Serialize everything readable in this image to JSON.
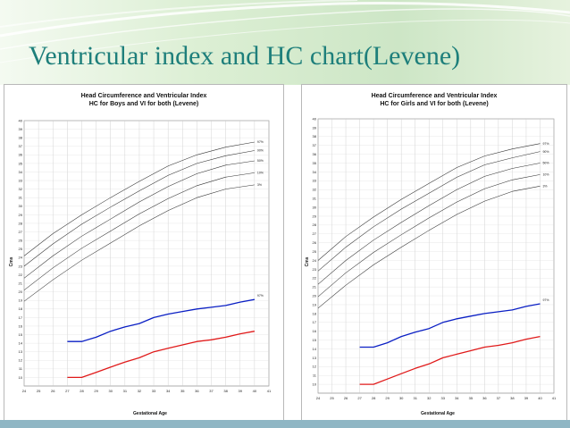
{
  "slide": {
    "title": "Ventricular index and HC chart(Levene)",
    "colors": {
      "title": "#1e7f7b",
      "hc_lines": "#333333",
      "vi_97": "#0a1fc4",
      "vi_50": "#e01a1a",
      "footer": "#8fb6c4"
    }
  },
  "chart_data": [
    {
      "type": "line",
      "title": "Head Circumference and Ventricular Index",
      "subtitle": "HC for Boys and VI for both (Levene)",
      "xlabel": "Gestational Age",
      "ylabel": "Cms",
      "xlim": [
        24,
        41
      ],
      "ylim": [
        9,
        40
      ],
      "xticks": [
        "24",
        "25",
        "26",
        "27",
        "28",
        "29",
        "30",
        "31",
        "32",
        "33",
        "34",
        "35",
        "36",
        "37",
        "38",
        "39",
        "40",
        "41"
      ],
      "yticks": [
        "10",
        "11",
        "12",
        "13",
        "14",
        "15",
        "16",
        "17",
        "18",
        "19",
        "20",
        "21",
        "22",
        "23",
        "24",
        "25",
        "26",
        "27",
        "28",
        "29",
        "30",
        "31",
        "32",
        "33",
        "34",
        "35",
        "36",
        "37",
        "38",
        "39",
        "40"
      ],
      "grid": true,
      "series": [
        {
          "name": "97%",
          "kind": "hc",
          "x": [
            24,
            26,
            28,
            30,
            32,
            34,
            36,
            38,
            40
          ],
          "y": [
            24.2,
            26.8,
            29.0,
            31.0,
            32.9,
            34.7,
            36.0,
            36.9,
            37.5
          ]
        },
        {
          "name": "90%",
          "kind": "hc",
          "x": [
            24,
            26,
            28,
            30,
            32,
            34,
            36,
            38,
            40
          ],
          "y": [
            23.0,
            25.6,
            27.9,
            29.9,
            31.8,
            33.6,
            35.0,
            35.9,
            36.5
          ]
        },
        {
          "name": "50%",
          "kind": "hc",
          "x": [
            24,
            26,
            28,
            30,
            32,
            34,
            36,
            38,
            40
          ],
          "y": [
            21.6,
            24.2,
            26.5,
            28.5,
            30.5,
            32.3,
            33.8,
            34.8,
            35.3
          ]
        },
        {
          "name": "10%",
          "kind": "hc",
          "x": [
            24,
            26,
            28,
            30,
            32,
            34,
            36,
            38,
            40
          ],
          "y": [
            20.2,
            22.8,
            25.1,
            27.1,
            29.1,
            30.9,
            32.4,
            33.4,
            33.9
          ]
        },
        {
          "name": "3%",
          "kind": "hc",
          "x": [
            24,
            26,
            28,
            30,
            32,
            34,
            36,
            38,
            40
          ],
          "y": [
            18.9,
            21.4,
            23.7,
            25.7,
            27.7,
            29.5,
            31.0,
            32.0,
            32.5
          ]
        },
        {
          "name": "97%",
          "kind": "vi",
          "x": [
            27,
            28,
            29,
            30,
            31,
            32,
            33,
            34,
            35,
            36,
            37,
            38,
            39,
            40
          ],
          "y": [
            14.2,
            14.2,
            14.7,
            15.4,
            15.9,
            16.3,
            17.0,
            17.4,
            17.7,
            18.0,
            18.2,
            18.4,
            18.8,
            19.1
          ]
        },
        {
          "name": "",
          "kind": "vi_low",
          "x": [
            27,
            28,
            29,
            30,
            31,
            32,
            33,
            34,
            35,
            36,
            37,
            38,
            39,
            40
          ],
          "y": [
            10.0,
            10.0,
            10.6,
            11.2,
            11.8,
            12.3,
            13.0,
            13.4,
            13.8,
            14.2,
            14.4,
            14.7,
            15.1,
            15.4
          ]
        }
      ],
      "annotations": [
        "97%"
      ]
    },
    {
      "type": "line",
      "title": "Head Circumference and Ventricular Index",
      "subtitle": "HC for Girls and VI for both (Levene)",
      "xlabel": "Gestational Age",
      "ylabel": "Cms",
      "xlim": [
        24,
        41
      ],
      "ylim": [
        9,
        40
      ],
      "xticks": [
        "24",
        "25",
        "26",
        "27",
        "28",
        "29",
        "30",
        "31",
        "32",
        "33",
        "34",
        "35",
        "36",
        "37",
        "38",
        "39",
        "40",
        "41"
      ],
      "yticks": [
        "10",
        "11",
        "12",
        "13",
        "14",
        "15",
        "16",
        "17",
        "18",
        "19",
        "20",
        "21",
        "22",
        "23",
        "24",
        "25",
        "26",
        "27",
        "28",
        "29",
        "30",
        "31",
        "32",
        "33",
        "34",
        "35",
        "36",
        "37",
        "38",
        "39",
        "40"
      ],
      "grid": true,
      "series": [
        {
          "name": "97%",
          "kind": "hc",
          "x": [
            24,
            26,
            28,
            30,
            32,
            34,
            36,
            38,
            40
          ],
          "y": [
            24.0,
            26.7,
            28.9,
            30.9,
            32.7,
            34.5,
            35.8,
            36.6,
            37.2
          ]
        },
        {
          "name": "90%",
          "kind": "hc",
          "x": [
            24,
            26,
            28,
            30,
            32,
            34,
            36,
            38,
            40
          ],
          "y": [
            22.8,
            25.5,
            27.8,
            29.8,
            31.6,
            33.4,
            34.8,
            35.6,
            36.3
          ]
        },
        {
          "name": "50%",
          "kind": "hc",
          "x": [
            24,
            26,
            28,
            30,
            32,
            34,
            36,
            38,
            40
          ],
          "y": [
            21.3,
            24.0,
            26.3,
            28.3,
            30.2,
            32.0,
            33.5,
            34.4,
            35.0
          ]
        },
        {
          "name": "10%",
          "kind": "hc",
          "x": [
            24,
            26,
            28,
            30,
            32,
            34,
            36,
            38,
            40
          ],
          "y": [
            19.9,
            22.6,
            24.9,
            26.9,
            28.8,
            30.6,
            32.1,
            33.1,
            33.7
          ]
        },
        {
          "name": "3%",
          "kind": "hc",
          "x": [
            24,
            26,
            28,
            30,
            32,
            34,
            36,
            38,
            40
          ],
          "y": [
            18.6,
            21.2,
            23.5,
            25.5,
            27.4,
            29.2,
            30.7,
            31.8,
            32.4
          ]
        },
        {
          "name": "97%",
          "kind": "vi",
          "x": [
            27,
            28,
            29,
            30,
            31,
            32,
            33,
            34,
            35,
            36,
            37,
            38,
            39,
            40
          ],
          "y": [
            14.2,
            14.2,
            14.7,
            15.4,
            15.9,
            16.3,
            17.0,
            17.4,
            17.7,
            18.0,
            18.2,
            18.4,
            18.8,
            19.1
          ]
        },
        {
          "name": "",
          "kind": "vi_low",
          "x": [
            27,
            28,
            29,
            30,
            31,
            32,
            33,
            34,
            35,
            36,
            37,
            38,
            39,
            40
          ],
          "y": [
            10.0,
            10.0,
            10.6,
            11.2,
            11.8,
            12.3,
            13.0,
            13.4,
            13.8,
            14.2,
            14.4,
            14.7,
            15.1,
            15.4
          ]
        }
      ],
      "annotations": [
        "97%"
      ]
    }
  ]
}
